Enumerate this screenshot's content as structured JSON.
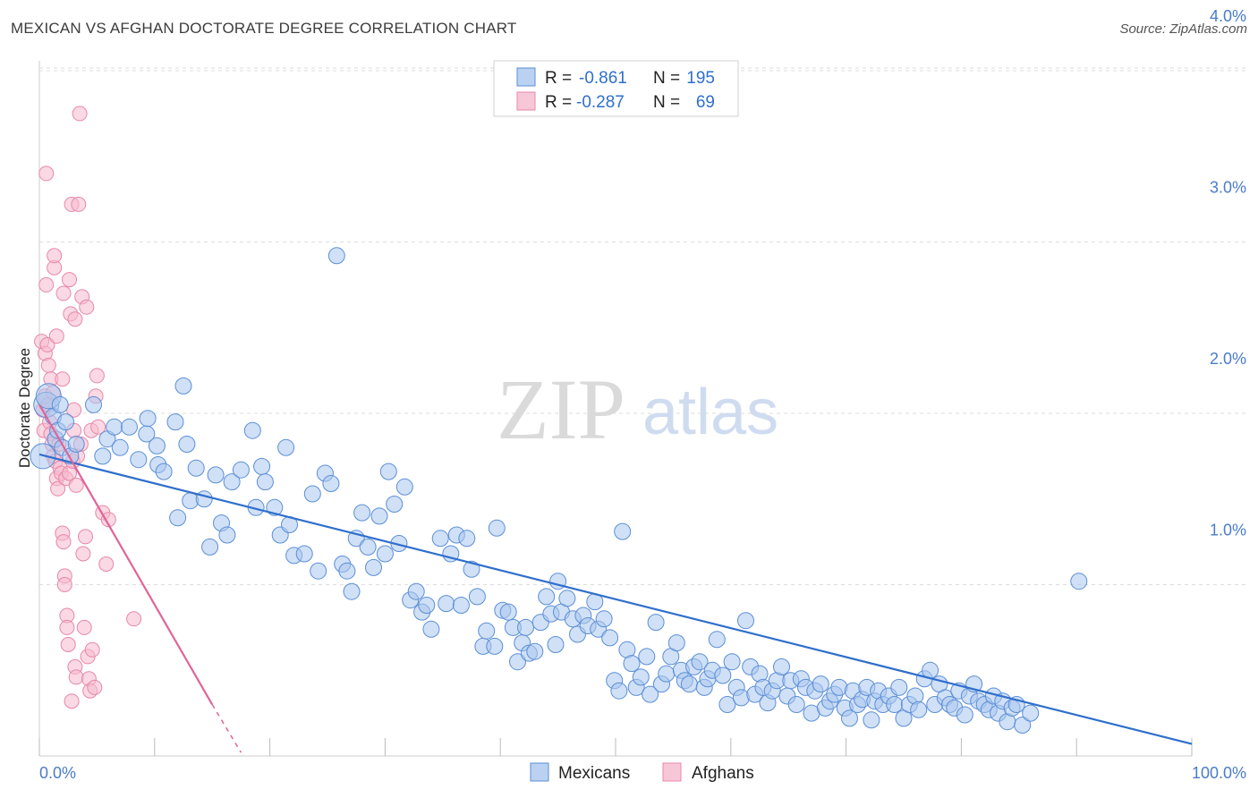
{
  "header": {
    "title": "MEXICAN VS AFGHAN DOCTORATE DEGREE CORRELATION CHART",
    "source": "Source: ZipAtlas.com"
  },
  "watermark": {
    "zip": "ZIP",
    "atlas": "atlas"
  },
  "colors": {
    "mexicans_fill": "#a9c6ee",
    "mexicans_stroke": "#5b8fd6",
    "mexicans_line": "#2f6fcc",
    "afghans_fill": "#f6b9cd",
    "afghans_stroke": "#e887a8",
    "afghans_line": "#e0649a",
    "tick_label": "#4a7cc9",
    "grid": "#dddddd"
  },
  "legend_top": {
    "rows": [
      {
        "r_label": "R =",
        "r_value": "-0.861",
        "n_label": "N =",
        "n_value": "195"
      },
      {
        "r_label": "R =",
        "r_value": "-0.287",
        "n_label": "N =",
        "n_value": "69"
      }
    ]
  },
  "legend_bottom": {
    "items": [
      "Mexicans",
      "Afghans"
    ]
  },
  "chart_data": {
    "type": "scatter",
    "title": "MEXICAN VS AFGHAN DOCTORATE DEGREE CORRELATION CHART",
    "xlabel": "",
    "ylabel": "Doctorate Degree",
    "xlim": [
      0,
      100
    ],
    "ylim": [
      0,
      4.2
    ],
    "x_tick_labels": [
      "0.0%",
      "100.0%"
    ],
    "y_ticks": [
      1.0,
      2.0,
      3.0,
      4.0
    ],
    "y_tick_labels": [
      "1.0%",
      "2.0%",
      "3.0%",
      "4.0%"
    ],
    "grid": true,
    "legend_position": "top-center",
    "series": [
      {
        "name": "Mexicans",
        "r": -0.861,
        "n": 195,
        "trend": {
          "x": [
            0,
            100
          ],
          "y": [
            1.76,
            0.07
          ]
        },
        "points": [
          [
            0.3,
            1.75
          ],
          [
            0.6,
            2.05
          ],
          [
            0.8,
            2.1
          ],
          [
            1.2,
            1.98
          ],
          [
            1.4,
            1.85
          ],
          [
            1.6,
            1.9
          ],
          [
            1.8,
            2.05
          ],
          [
            2.0,
            1.8
          ],
          [
            2.3,
            1.95
          ],
          [
            2.7,
            1.75
          ],
          [
            3.2,
            1.82
          ],
          [
            4.7,
            2.05
          ],
          [
            5.5,
            1.75
          ],
          [
            5.9,
            1.85
          ],
          [
            6.5,
            1.92
          ],
          [
            7.0,
            1.8
          ],
          [
            7.8,
            1.92
          ],
          [
            8.6,
            1.73
          ],
          [
            9.3,
            1.88
          ],
          [
            9.4,
            1.97
          ],
          [
            10.2,
            1.81
          ],
          [
            10.3,
            1.7
          ],
          [
            10.8,
            1.66
          ],
          [
            11.8,
            1.95
          ],
          [
            12.0,
            1.39
          ],
          [
            12.5,
            2.16
          ],
          [
            12.8,
            1.82
          ],
          [
            13.1,
            1.49
          ],
          [
            13.6,
            1.68
          ],
          [
            14.3,
            1.5
          ],
          [
            14.8,
            1.22
          ],
          [
            15.3,
            1.64
          ],
          [
            15.8,
            1.36
          ],
          [
            16.3,
            1.29
          ],
          [
            16.7,
            1.6
          ],
          [
            17.5,
            1.67
          ],
          [
            18.5,
            1.9
          ],
          [
            18.8,
            1.45
          ],
          [
            19.3,
            1.69
          ],
          [
            19.6,
            1.6
          ],
          [
            20.4,
            1.45
          ],
          [
            20.9,
            1.29
          ],
          [
            21.4,
            1.8
          ],
          [
            21.7,
            1.35
          ],
          [
            22.1,
            1.17
          ],
          [
            23.0,
            1.18
          ],
          [
            23.7,
            1.53
          ],
          [
            24.2,
            1.08
          ],
          [
            24.8,
            1.65
          ],
          [
            25.3,
            1.59
          ],
          [
            25.8,
            2.92
          ],
          [
            26.3,
            1.12
          ],
          [
            26.7,
            1.08
          ],
          [
            27.1,
            0.96
          ],
          [
            27.5,
            1.27
          ],
          [
            28.0,
            1.42
          ],
          [
            28.5,
            1.22
          ],
          [
            29.0,
            1.1
          ],
          [
            29.5,
            1.4
          ],
          [
            30.0,
            1.18
          ],
          [
            30.3,
            1.66
          ],
          [
            30.8,
            1.47
          ],
          [
            31.2,
            1.24
          ],
          [
            31.7,
            1.57
          ],
          [
            32.2,
            0.91
          ],
          [
            32.7,
            0.96
          ],
          [
            33.2,
            0.84
          ],
          [
            33.6,
            0.88
          ],
          [
            34.0,
            0.74
          ],
          [
            34.8,
            1.27
          ],
          [
            35.3,
            0.89
          ],
          [
            35.7,
            1.18
          ],
          [
            36.2,
            1.29
          ],
          [
            36.6,
            0.88
          ],
          [
            37.1,
            1.27
          ],
          [
            37.5,
            1.09
          ],
          [
            38.0,
            0.93
          ],
          [
            38.5,
            0.64
          ],
          [
            38.8,
            0.73
          ],
          [
            39.5,
            0.64
          ],
          [
            39.7,
            1.33
          ],
          [
            40.2,
            0.85
          ],
          [
            40.7,
            0.84
          ],
          [
            41.1,
            0.75
          ],
          [
            41.5,
            0.55
          ],
          [
            41.9,
            0.66
          ],
          [
            42.2,
            0.75
          ],
          [
            42.5,
            0.6
          ],
          [
            43.0,
            0.61
          ],
          [
            43.5,
            0.78
          ],
          [
            44.0,
            0.93
          ],
          [
            44.4,
            0.83
          ],
          [
            44.8,
            0.65
          ],
          [
            45.0,
            1.02
          ],
          [
            45.3,
            0.84
          ],
          [
            45.8,
            0.92
          ],
          [
            46.3,
            0.8
          ],
          [
            46.7,
            0.71
          ],
          [
            47.2,
            0.82
          ],
          [
            47.6,
            0.76
          ],
          [
            48.2,
            0.9
          ],
          [
            48.5,
            0.74
          ],
          [
            49.0,
            0.8
          ],
          [
            49.5,
            0.69
          ],
          [
            49.9,
            0.44
          ],
          [
            50.3,
            0.38
          ],
          [
            50.6,
            1.31
          ],
          [
            51.0,
            0.62
          ],
          [
            51.4,
            0.54
          ],
          [
            51.8,
            0.4
          ],
          [
            52.2,
            0.46
          ],
          [
            52.7,
            0.58
          ],
          [
            53.0,
            0.36
          ],
          [
            53.5,
            0.78
          ],
          [
            54.0,
            0.42
          ],
          [
            54.4,
            0.48
          ],
          [
            54.8,
            0.58
          ],
          [
            55.3,
            0.66
          ],
          [
            55.7,
            0.5
          ],
          [
            56.0,
            0.44
          ],
          [
            56.4,
            0.42
          ],
          [
            56.8,
            0.52
          ],
          [
            57.3,
            0.55
          ],
          [
            57.7,
            0.4
          ],
          [
            58.0,
            0.45
          ],
          [
            58.4,
            0.5
          ],
          [
            58.8,
            0.68
          ],
          [
            59.3,
            0.47
          ],
          [
            59.7,
            0.3
          ],
          [
            60.1,
            0.55
          ],
          [
            60.5,
            0.4
          ],
          [
            60.9,
            0.34
          ],
          [
            61.3,
            0.79
          ],
          [
            61.7,
            0.52
          ],
          [
            62.1,
            0.36
          ],
          [
            62.5,
            0.48
          ],
          [
            62.8,
            0.4
          ],
          [
            63.2,
            0.31
          ],
          [
            63.6,
            0.38
          ],
          [
            64.0,
            0.44
          ],
          [
            64.4,
            0.52
          ],
          [
            64.9,
            0.35
          ],
          [
            65.2,
            0.44
          ],
          [
            65.7,
            0.3
          ],
          [
            66.1,
            0.45
          ],
          [
            66.5,
            0.4
          ],
          [
            67.0,
            0.25
          ],
          [
            67.3,
            0.38
          ],
          [
            67.8,
            0.42
          ],
          [
            68.2,
            0.28
          ],
          [
            68.6,
            0.32
          ],
          [
            69.0,
            0.36
          ],
          [
            69.4,
            0.4
          ],
          [
            69.9,
            0.28
          ],
          [
            70.3,
            0.22
          ],
          [
            70.6,
            0.38
          ],
          [
            71.0,
            0.3
          ],
          [
            71.4,
            0.33
          ],
          [
            71.8,
            0.4
          ],
          [
            72.2,
            0.21
          ],
          [
            72.5,
            0.32
          ],
          [
            72.8,
            0.38
          ],
          [
            73.2,
            0.3
          ],
          [
            73.7,
            0.35
          ],
          [
            74.2,
            0.3
          ],
          [
            74.6,
            0.4
          ],
          [
            75.0,
            0.22
          ],
          [
            75.5,
            0.3
          ],
          [
            76.0,
            0.35
          ],
          [
            76.3,
            0.27
          ],
          [
            76.8,
            0.45
          ],
          [
            77.3,
            0.5
          ],
          [
            77.7,
            0.3
          ],
          [
            78.1,
            0.42
          ],
          [
            78.6,
            0.34
          ],
          [
            79.0,
            0.3
          ],
          [
            79.4,
            0.28
          ],
          [
            79.8,
            0.38
          ],
          [
            80.3,
            0.24
          ],
          [
            80.7,
            0.35
          ],
          [
            81.1,
            0.42
          ],
          [
            81.5,
            0.32
          ],
          [
            82.0,
            0.3
          ],
          [
            82.4,
            0.27
          ],
          [
            82.8,
            0.35
          ],
          [
            83.2,
            0.25
          ],
          [
            83.6,
            0.32
          ],
          [
            84.0,
            0.2
          ],
          [
            84.4,
            0.28
          ],
          [
            84.8,
            0.3
          ],
          [
            85.3,
            0.18
          ],
          [
            86.0,
            0.25
          ],
          [
            90.2,
            1.02
          ]
        ]
      },
      {
        "name": "Afghans",
        "r": -0.287,
        "n": 69,
        "trend": {
          "x": [
            0,
            15
          ],
          "y": [
            2.05,
            0.3
          ]
        },
        "trend_dashed": {
          "x": [
            15,
            17.5
          ],
          "y": [
            0.3,
            0.02
          ]
        },
        "points": [
          [
            0.2,
            2.42
          ],
          [
            0.3,
            2.02
          ],
          [
            0.4,
            1.9
          ],
          [
            0.5,
            2.35
          ],
          [
            0.5,
            2.1
          ],
          [
            0.6,
            3.4
          ],
          [
            0.6,
            2.75
          ],
          [
            0.7,
            2.4
          ],
          [
            0.8,
            2.28
          ],
          [
            0.8,
            2.05
          ],
          [
            0.9,
            1.95
          ],
          [
            1.0,
            1.88
          ],
          [
            1.0,
            2.2
          ],
          [
            1.1,
            1.82
          ],
          [
            1.2,
            2.12
          ],
          [
            1.2,
            1.75
          ],
          [
            1.3,
            2.85
          ],
          [
            1.3,
            2.92
          ],
          [
            1.4,
            1.72
          ],
          [
            1.5,
            2.45
          ],
          [
            1.5,
            1.62
          ],
          [
            1.6,
            1.56
          ],
          [
            1.7,
            1.82
          ],
          [
            1.8,
            1.68
          ],
          [
            1.9,
            1.65
          ],
          [
            2.0,
            2.2
          ],
          [
            2.0,
            1.3
          ],
          [
            2.1,
            1.25
          ],
          [
            2.1,
            2.7
          ],
          [
            2.2,
            1.05
          ],
          [
            2.2,
            1.0
          ],
          [
            2.3,
            1.62
          ],
          [
            2.4,
            0.82
          ],
          [
            2.4,
            0.75
          ],
          [
            2.5,
            0.65
          ],
          [
            2.6,
            2.78
          ],
          [
            2.6,
            1.65
          ],
          [
            2.7,
            2.58
          ],
          [
            2.8,
            3.22
          ],
          [
            2.8,
            0.32
          ],
          [
            2.9,
            1.72
          ],
          [
            3.0,
            2.02
          ],
          [
            3.0,
            1.9
          ],
          [
            3.1,
            2.55
          ],
          [
            3.1,
            0.52
          ],
          [
            3.2,
            0.46
          ],
          [
            3.2,
            1.58
          ],
          [
            3.3,
            1.75
          ],
          [
            3.4,
            3.22
          ],
          [
            3.5,
            3.75
          ],
          [
            3.6,
            1.82
          ],
          [
            3.7,
            2.68
          ],
          [
            3.8,
            1.18
          ],
          [
            3.9,
            0.75
          ],
          [
            4.0,
            1.28
          ],
          [
            4.1,
            2.62
          ],
          [
            4.2,
            0.58
          ],
          [
            4.3,
            0.45
          ],
          [
            4.4,
            0.38
          ],
          [
            4.5,
            1.9
          ],
          [
            4.6,
            0.62
          ],
          [
            4.8,
            0.4
          ],
          [
            4.9,
            2.1
          ],
          [
            5.0,
            2.22
          ],
          [
            5.1,
            1.92
          ],
          [
            5.5,
            1.42
          ],
          [
            5.8,
            1.12
          ],
          [
            6.0,
            1.38
          ],
          [
            8.2,
            0.8
          ]
        ]
      }
    ]
  }
}
